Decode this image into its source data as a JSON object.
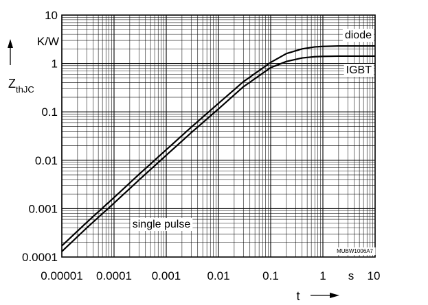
{
  "chart_data": {
    "type": "line",
    "xscale": "log",
    "yscale": "log",
    "xlim": [
      1e-05,
      10
    ],
    "ylim": [
      0.0001,
      10
    ],
    "grid": true,
    "xlabel": "t",
    "ylabel": "Z",
    "ylabel_subscript": "thJC",
    "yunit": "K/W",
    "xunit": "s",
    "x_ticks": [
      {
        "value": 1e-05,
        "label": "0.00001"
      },
      {
        "value": 0.0001,
        "label": "0.0001"
      },
      {
        "value": 0.001,
        "label": "0.001"
      },
      {
        "value": 0.01,
        "label": "0.01"
      },
      {
        "value": 0.1,
        "label": "0.1"
      },
      {
        "value": 1,
        "label": "1"
      },
      {
        "value": 10,
        "label": "10"
      }
    ],
    "y_ticks": [
      {
        "value": 0.0001,
        "label": "0.0001"
      },
      {
        "value": 0.001,
        "label": "0.001"
      },
      {
        "value": 0.01,
        "label": "0.01"
      },
      {
        "value": 0.1,
        "label": "0.1"
      },
      {
        "value": 1,
        "label": "1"
      },
      {
        "value": 10,
        "label": "10"
      }
    ],
    "annotations": {
      "single_pulse": "single pulse",
      "figure_code": "MUBW1006A7"
    },
    "series": [
      {
        "name": "diode",
        "x": [
          1e-05,
          3e-05,
          0.0001,
          0.0003,
          0.001,
          0.003,
          0.01,
          0.03,
          0.1,
          0.2,
          0.4,
          0.7,
          1,
          2,
          10
        ],
        "y": [
          0.00017,
          0.00052,
          0.0017,
          0.0051,
          0.0165,
          0.048,
          0.15,
          0.42,
          1.05,
          1.6,
          2.0,
          2.2,
          2.25,
          2.3,
          2.3
        ]
      },
      {
        "name": "IGBT",
        "x": [
          1e-05,
          3e-05,
          0.0001,
          0.0003,
          0.001,
          0.003,
          0.01,
          0.03,
          0.1,
          0.2,
          0.4,
          0.7,
          1,
          2,
          10
        ],
        "y": [
          0.00013,
          0.0004,
          0.0013,
          0.0039,
          0.0127,
          0.037,
          0.115,
          0.33,
          0.82,
          1.1,
          1.3,
          1.38,
          1.4,
          1.42,
          1.42
        ]
      }
    ]
  }
}
